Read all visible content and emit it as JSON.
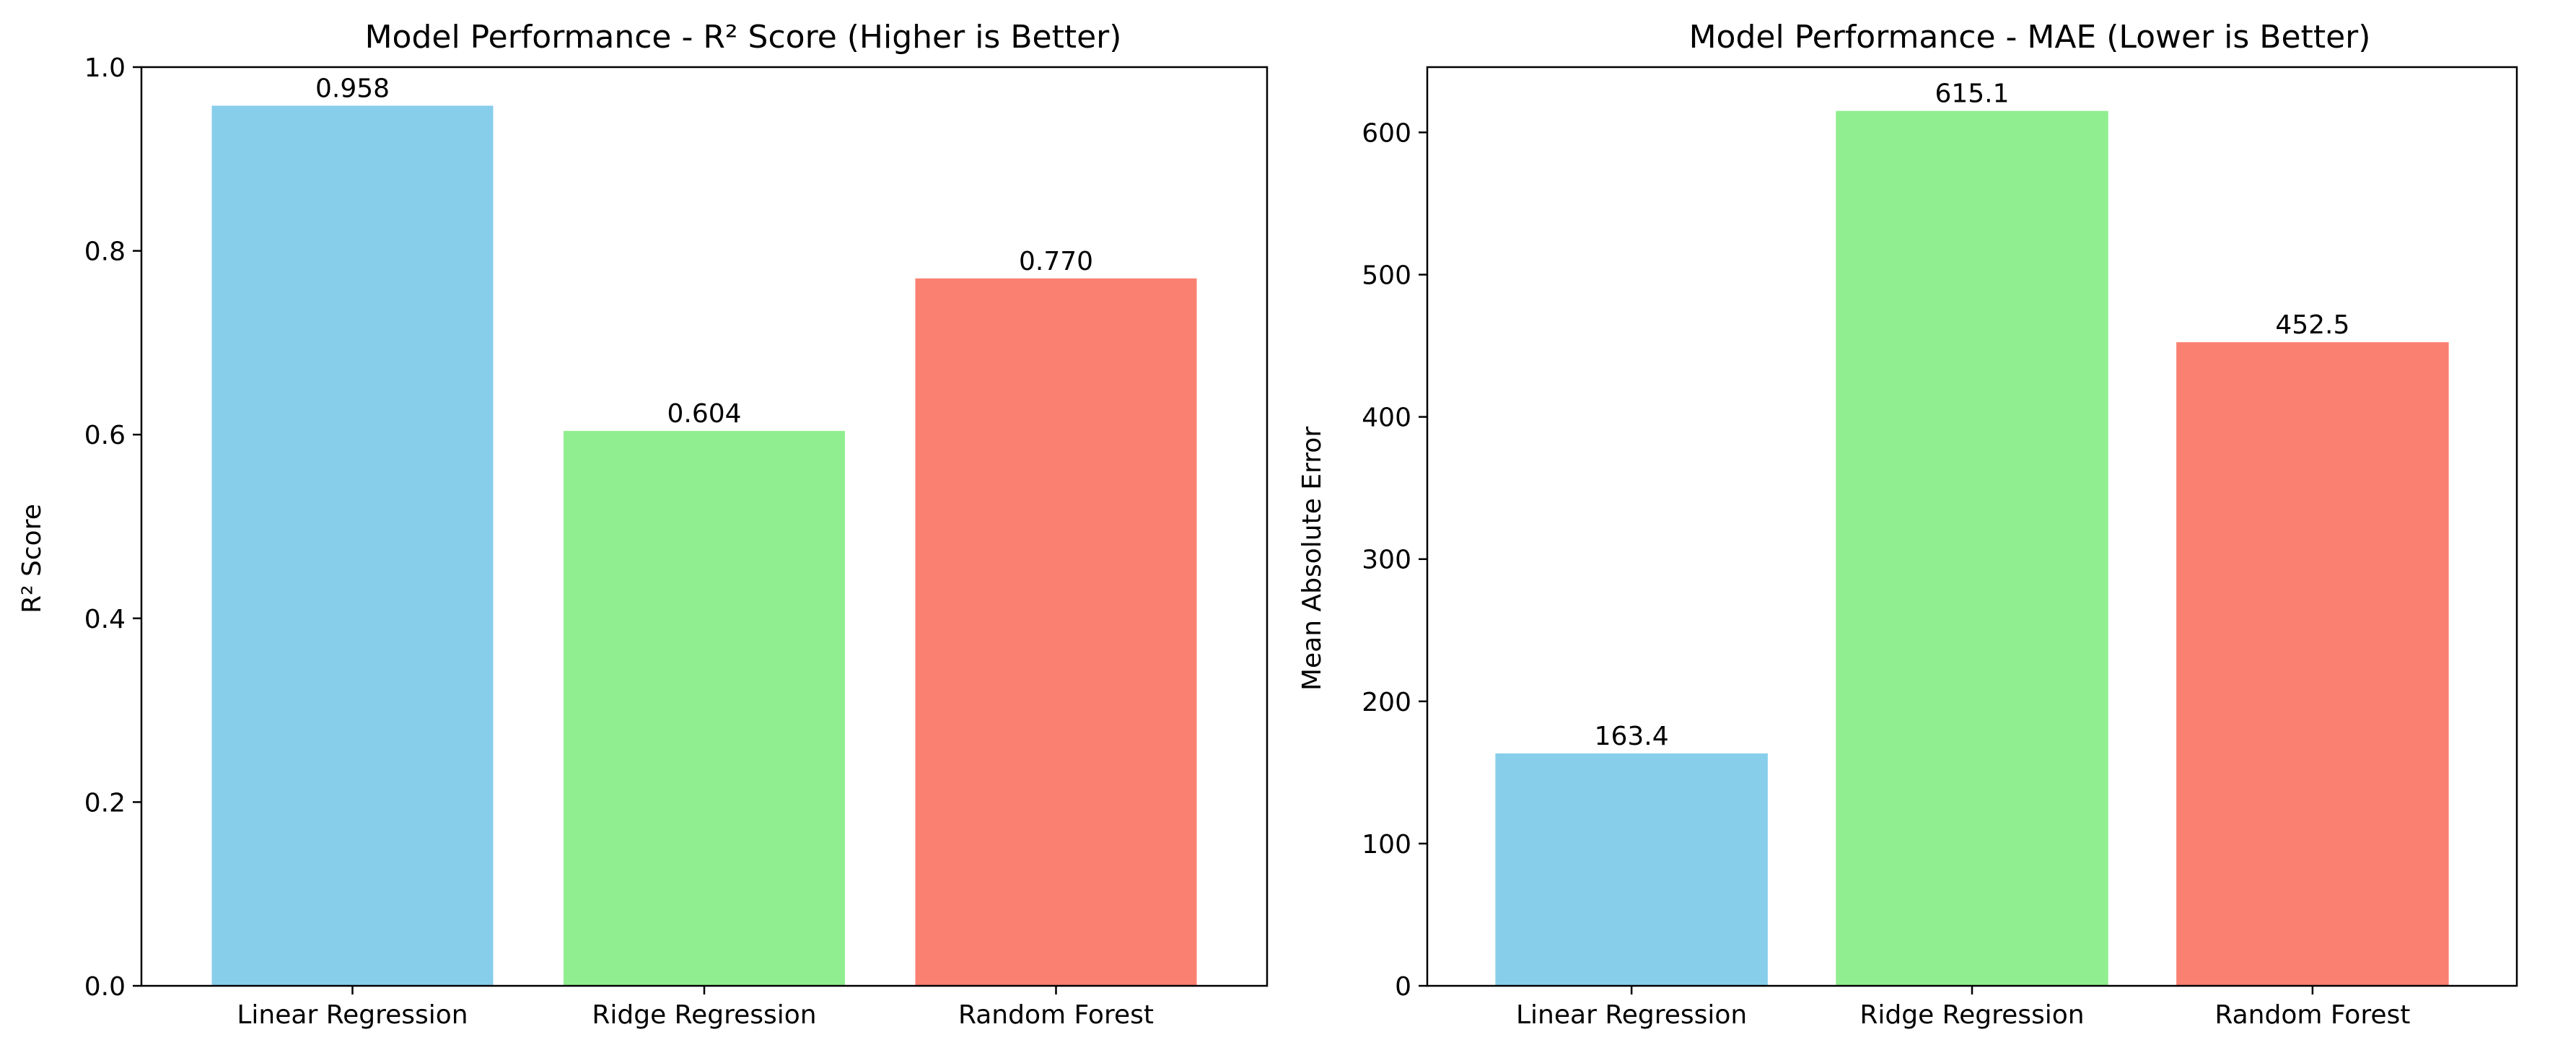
{
  "chart_data": [
    {
      "type": "bar",
      "title": "Model Performance - R² Score (Higher is Better)",
      "xlabel": "",
      "ylabel": "R² Score",
      "categories": [
        "Linear Regression",
        "Ridge Regression",
        "Random Forest"
      ],
      "values": [
        0.958,
        0.604,
        0.77
      ],
      "value_labels": [
        "0.958",
        "0.604",
        "0.770"
      ],
      "colors": [
        "#87CEEB",
        "#90EE90",
        "#FA8072"
      ],
      "ylim": [
        0,
        1.0
      ],
      "yticks": [
        0,
        0.2,
        0.4,
        0.6,
        0.8,
        1.0
      ],
      "ytick_labels": [
        "0.0",
        "0.2",
        "0.4",
        "0.6",
        "0.8",
        "1.0"
      ],
      "grid": false,
      "legend": "none"
    },
    {
      "type": "bar",
      "title": "Model Performance - MAE (Lower is Better)",
      "xlabel": "",
      "ylabel": "Mean Absolute Error",
      "categories": [
        "Linear Regression",
        "Ridge Regression",
        "Random Forest"
      ],
      "values": [
        163.4,
        615.1,
        452.5
      ],
      "value_labels": [
        "163.4",
        "615.1",
        "452.5"
      ],
      "colors": [
        "#87CEEB",
        "#90EE90",
        "#FA8072"
      ],
      "ylim": [
        0,
        645.9
      ],
      "yticks": [
        0,
        100,
        200,
        300,
        400,
        500,
        600
      ],
      "ytick_labels": [
        "0",
        "100",
        "200",
        "300",
        "400",
        "500",
        "600"
      ],
      "grid": false,
      "legend": "none"
    }
  ]
}
